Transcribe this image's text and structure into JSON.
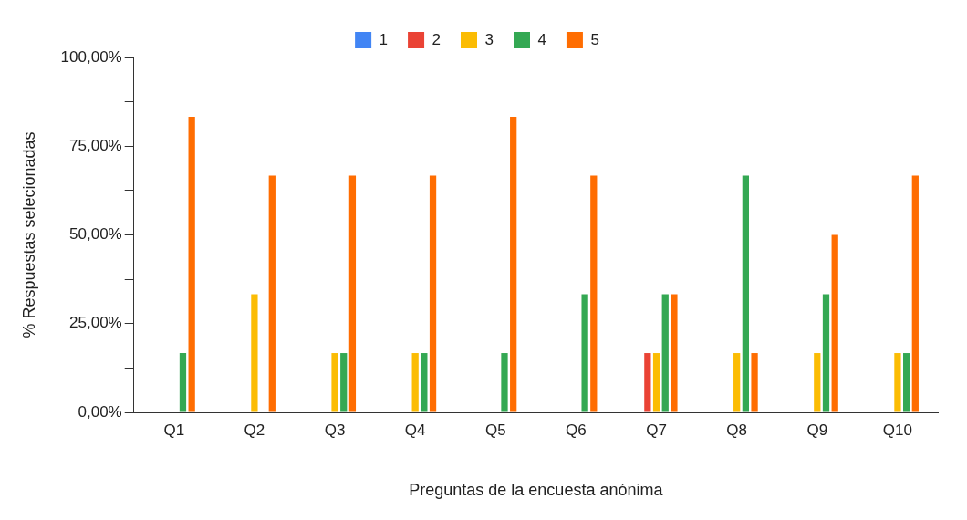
{
  "chart_data": {
    "type": "bar",
    "xlabel": "Preguntas de la encuesta anónima",
    "ylabel": "% Respuestas selecionadas",
    "categories": [
      "Q1",
      "Q2",
      "Q3",
      "Q4",
      "Q5",
      "Q6",
      "Q7",
      "Q8",
      "Q9",
      "Q10"
    ],
    "series": [
      {
        "name": "1",
        "color": "#4285f4",
        "values": [
          0,
          0,
          0,
          0,
          0,
          0,
          0,
          0,
          0,
          0
        ]
      },
      {
        "name": "2",
        "color": "#ea4335",
        "values": [
          0,
          0,
          0,
          0,
          0,
          0,
          16.7,
          0,
          0,
          0
        ]
      },
      {
        "name": "3",
        "color": "#fbbc04",
        "values": [
          0,
          33.3,
          16.7,
          16.7,
          0,
          0,
          16.7,
          16.7,
          16.7,
          16.7
        ]
      },
      {
        "name": "4",
        "color": "#34a853",
        "values": [
          16.7,
          0,
          16.7,
          16.7,
          16.7,
          33.3,
          33.3,
          66.7,
          33.3,
          16.7
        ]
      },
      {
        "name": "5",
        "color": "#ff6d01",
        "values": [
          83.3,
          66.7,
          66.7,
          66.7,
          83.3,
          66.7,
          33.3,
          16.7,
          50,
          66.7
        ]
      }
    ],
    "ylim": [
      0,
      100
    ],
    "yticks": [
      {
        "value": 0,
        "label": "0,00%"
      },
      {
        "value": 12.5,
        "label": null
      },
      {
        "value": 25,
        "label": "25,00%"
      },
      {
        "value": 37.5,
        "label": null
      },
      {
        "value": 50,
        "label": "50,00%"
      },
      {
        "value": 62.5,
        "label": null
      },
      {
        "value": 75,
        "label": "75,00%"
      },
      {
        "value": 87.5,
        "label": null
      },
      {
        "value": 100,
        "label": "100,00%"
      }
    ],
    "legend": "top"
  }
}
